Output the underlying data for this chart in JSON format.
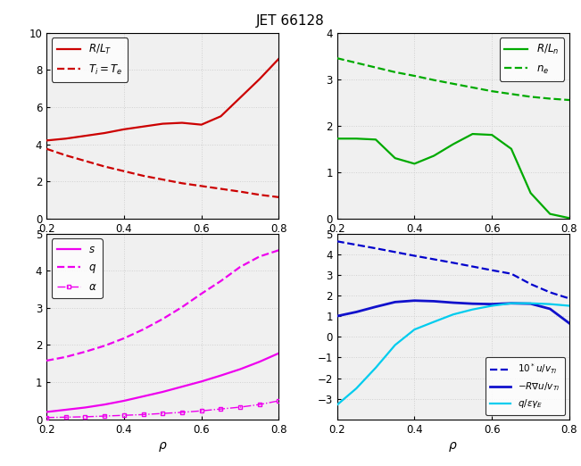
{
  "title": "JET 66128",
  "rho": [
    0.2,
    0.25,
    0.3,
    0.35,
    0.4,
    0.45,
    0.5,
    0.55,
    0.6,
    0.65,
    0.7,
    0.75,
    0.8
  ],
  "RL_T": [
    4.2,
    4.3,
    4.45,
    4.6,
    4.8,
    4.95,
    5.1,
    5.15,
    5.05,
    5.5,
    6.5,
    7.5,
    8.6
  ],
  "Ti_Te": [
    3.75,
    3.4,
    3.1,
    2.8,
    2.55,
    2.3,
    2.1,
    1.9,
    1.75,
    1.6,
    1.45,
    1.28,
    1.15
  ],
  "RL_n": [
    1.72,
    1.72,
    1.7,
    1.3,
    1.18,
    1.35,
    1.6,
    1.82,
    1.8,
    1.5,
    0.55,
    0.1,
    0.01
  ],
  "n_e": [
    3.45,
    3.35,
    3.25,
    3.15,
    3.07,
    2.98,
    2.9,
    2.82,
    2.74,
    2.68,
    2.62,
    2.58,
    2.55
  ],
  "s": [
    0.2,
    0.26,
    0.32,
    0.4,
    0.5,
    0.62,
    0.74,
    0.88,
    1.02,
    1.18,
    1.35,
    1.55,
    1.78
  ],
  "q": [
    1.58,
    1.68,
    1.82,
    1.98,
    2.18,
    2.42,
    2.7,
    3.02,
    3.38,
    3.72,
    4.1,
    4.38,
    4.55
  ],
  "alpha": [
    0.05,
    0.06,
    0.07,
    0.09,
    0.11,
    0.13,
    0.16,
    0.19,
    0.23,
    0.28,
    0.33,
    0.4,
    0.5
  ],
  "u_vTi": [
    4.62,
    4.45,
    4.28,
    4.1,
    3.92,
    3.75,
    3.58,
    3.4,
    3.22,
    3.05,
    2.55,
    2.15,
    1.85
  ],
  "RVu_vTi": [
    1.0,
    1.2,
    1.45,
    1.68,
    1.75,
    1.72,
    1.65,
    1.6,
    1.58,
    1.62,
    1.6,
    1.35,
    0.65
  ],
  "q_eyE": [
    -3.3,
    -2.5,
    -1.5,
    -0.4,
    0.35,
    0.72,
    1.08,
    1.32,
    1.5,
    1.62,
    1.62,
    1.58,
    1.5
  ],
  "color_red": "#cc0000",
  "color_green": "#00aa00",
  "color_magenta": "#ee00ee",
  "color_blue_dashed": "#0000cc",
  "color_blue_solid": "#1111cc",
  "color_cyan": "#00ccee",
  "bg_color": "#f0f0f0",
  "grid_color": "#d0d0d0",
  "grid_style": ":"
}
